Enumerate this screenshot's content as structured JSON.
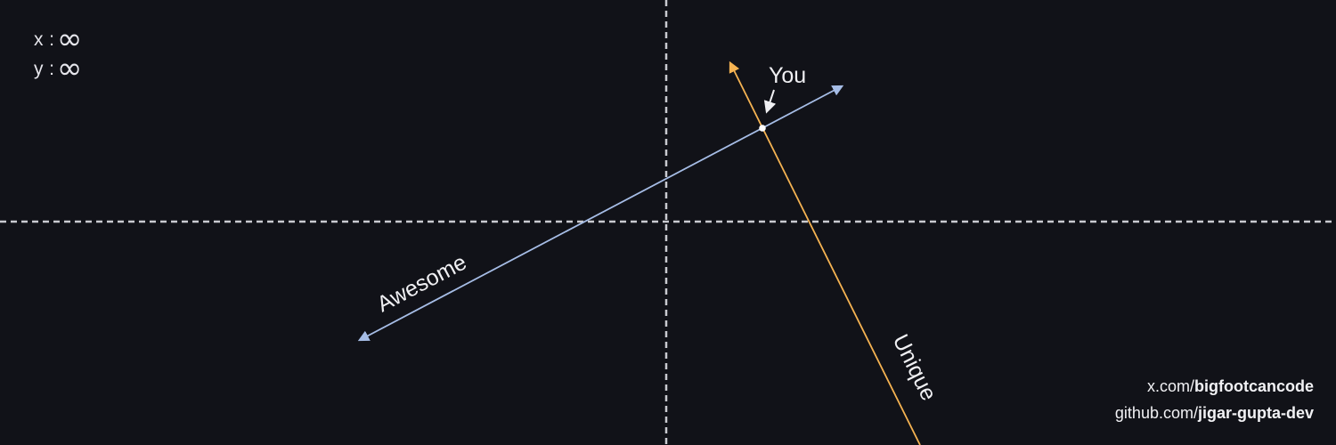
{
  "readout": {
    "x_label": "x",
    "y_label": "y",
    "separator": ":",
    "x_value": "∞",
    "y_value": "∞"
  },
  "diagram": {
    "point_label": "You",
    "line_blue_label": "Awesome",
    "line_orange_label": "Unique",
    "colors": {
      "background": "#111218",
      "axes": "#c9cad0",
      "line_blue": "#a6bde6",
      "line_orange": "#f5b352",
      "text": "#f0f0f3",
      "point": "#ffffff"
    }
  },
  "credits": {
    "line1_prefix": "x.com/",
    "line1_handle": "bigfootcancode",
    "line2_prefix": "github.com/",
    "line2_handle": "jigar-gupta-dev"
  }
}
